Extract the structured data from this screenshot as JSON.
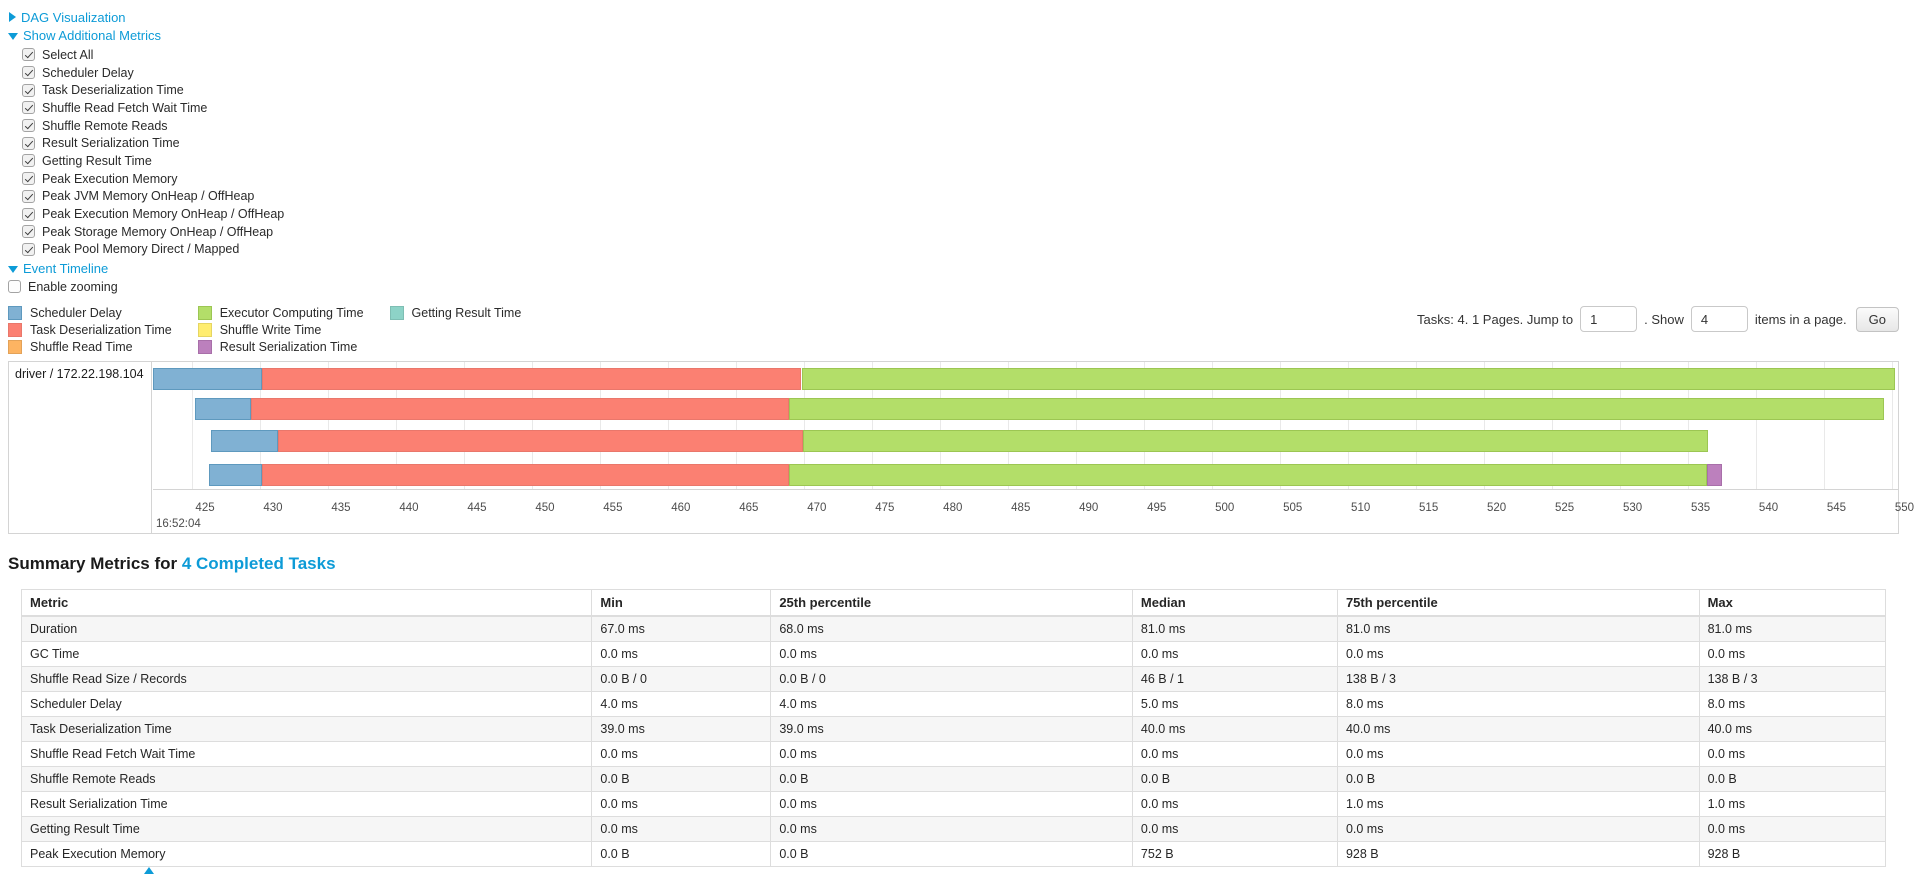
{
  "accent_color": "#0d9bd7",
  "sections": {
    "dag": {
      "label": "DAG Visualization",
      "state": "collapsed"
    },
    "metrics": {
      "label": "Show Additional Metrics",
      "state": "expanded",
      "checkboxes": [
        {
          "label": "Select All",
          "checked": true
        },
        {
          "label": "Scheduler Delay",
          "checked": true
        },
        {
          "label": "Task Deserialization Time",
          "checked": true
        },
        {
          "label": "Shuffle Read Fetch Wait Time",
          "checked": true
        },
        {
          "label": "Shuffle Remote Reads",
          "checked": true
        },
        {
          "label": "Result Serialization Time",
          "checked": true
        },
        {
          "label": "Getting Result Time",
          "checked": true
        },
        {
          "label": "Peak Execution Memory",
          "checked": true
        },
        {
          "label": "Peak JVM Memory OnHeap / OffHeap",
          "checked": true
        },
        {
          "label": "Peak Execution Memory OnHeap / OffHeap",
          "checked": true
        },
        {
          "label": "Peak Storage Memory OnHeap / OffHeap",
          "checked": true
        },
        {
          "label": "Peak Pool Memory Direct / Mapped",
          "checked": true
        }
      ]
    },
    "event_timeline": {
      "label": "Event Timeline",
      "enable_zooming_label": "Enable zooming",
      "enable_zooming_checked": false
    }
  },
  "legend": {
    "columns": [
      [
        {
          "label": "Scheduler Delay",
          "fill": "#80B1D3",
          "stroke": "#5E99BE"
        },
        {
          "label": "Task Deserialization Time",
          "fill": "#FB8072",
          "stroke": "#E9776B"
        },
        {
          "label": "Shuffle Read Time",
          "fill": "#FDB462",
          "stroke": "#E3A258"
        }
      ],
      [
        {
          "label": "Executor Computing Time",
          "fill": "#B3DE69",
          "stroke": "#9CC653"
        },
        {
          "label": "Shuffle Write Time",
          "fill": "#FFED6F",
          "stroke": "#E5D563"
        },
        {
          "label": "Result Serialization Time",
          "fill": "#BC80BD",
          "stroke": "#A86FA9"
        }
      ],
      [
        {
          "label": "Getting Result Time",
          "fill": "#8DD3C7",
          "stroke": "#7EBEB3"
        }
      ]
    ]
  },
  "pagination": {
    "prefix": "Tasks: 4. 1 Pages. Jump to",
    "jump_value": "1",
    "middle": ". Show",
    "show_value": "4",
    "suffix": "items in a page.",
    "go_label": "Go"
  },
  "chart_data": {
    "type": "timeline",
    "group_label": "driver / 172.22.198.104",
    "time_axis": {
      "start": 422.1,
      "end": 550.45,
      "tick_interval": 5,
      "ticks": [
        425,
        430,
        435,
        440,
        445,
        450,
        455,
        460,
        465,
        470,
        475,
        480,
        485,
        490,
        495,
        500,
        505,
        510,
        515,
        520,
        525,
        530,
        535,
        540,
        545,
        550
      ],
      "major_label": "16:52:04"
    },
    "colors": {
      "Scheduler Delay": {
        "fill": "#80B1D3",
        "stroke": "#5E99BE"
      },
      "Task Deserialization Time": {
        "fill": "#FB8072",
        "stroke": "#E9776B"
      },
      "Executor Computing Time": {
        "fill": "#B3DE69",
        "stroke": "#9CC653"
      },
      "Result Serialization Time": {
        "fill": "#BC80BD",
        "stroke": "#A86FA9"
      }
    },
    "tasks": [
      {
        "segments": [
          {
            "metric": "Scheduler Delay",
            "start": 422.1,
            "end": 430.1
          },
          {
            "metric": "Task Deserialization Time",
            "start": 430.1,
            "end": 469.8
          },
          {
            "metric": "Executor Computing Time",
            "start": 469.8,
            "end": 550.2
          }
        ]
      },
      {
        "segments": [
          {
            "metric": "Scheduler Delay",
            "start": 425.2,
            "end": 429.3
          },
          {
            "metric": "Task Deserialization Time",
            "start": 429.3,
            "end": 468.9
          },
          {
            "metric": "Executor Computing Time",
            "start": 468.9,
            "end": 549.4
          }
        ]
      },
      {
        "segments": [
          {
            "metric": "Scheduler Delay",
            "start": 426.4,
            "end": 431.3
          },
          {
            "metric": "Task Deserialization Time",
            "start": 431.3,
            "end": 469.9
          },
          {
            "metric": "Executor Computing Time",
            "start": 469.9,
            "end": 536.5
          }
        ]
      },
      {
        "segments": [
          {
            "metric": "Scheduler Delay",
            "start": 426.2,
            "end": 430.1
          },
          {
            "metric": "Task Deserialization Time",
            "start": 430.1,
            "end": 468.9
          },
          {
            "metric": "Executor Computing Time",
            "start": 468.9,
            "end": 536.4
          },
          {
            "metric": "Result Serialization Time",
            "start": 536.4,
            "end": 537.5
          }
        ]
      }
    ]
  },
  "summary": {
    "title_prefix": "Summary Metrics for ",
    "title_link": "4 Completed Tasks",
    "table": {
      "headers": [
        "Metric",
        "Min",
        "25th percentile",
        "Median",
        "75th percentile",
        "Max"
      ],
      "rows": [
        [
          "Duration",
          "67.0 ms",
          "68.0 ms",
          "81.0 ms",
          "81.0 ms",
          "81.0 ms"
        ],
        [
          "GC Time",
          "0.0 ms",
          "0.0 ms",
          "0.0 ms",
          "0.0 ms",
          "0.0 ms"
        ],
        [
          "Shuffle Read Size / Records",
          "0.0 B / 0",
          "0.0 B / 0",
          "46 B / 1",
          "138 B / 3",
          "138 B / 3"
        ],
        [
          "Scheduler Delay",
          "4.0 ms",
          "4.0 ms",
          "5.0 ms",
          "8.0 ms",
          "8.0 ms"
        ],
        [
          "Task Deserialization Time",
          "39.0 ms",
          "39.0 ms",
          "40.0 ms",
          "40.0 ms",
          "40.0 ms"
        ],
        [
          "Shuffle Read Fetch Wait Time",
          "0.0 ms",
          "0.0 ms",
          "0.0 ms",
          "0.0 ms",
          "0.0 ms"
        ],
        [
          "Shuffle Remote Reads",
          "0.0 B",
          "0.0 B",
          "0.0 B",
          "0.0 B",
          "0.0 B"
        ],
        [
          "Result Serialization Time",
          "0.0 ms",
          "0.0 ms",
          "0.0 ms",
          "1.0 ms",
          "1.0 ms"
        ],
        [
          "Getting Result Time",
          "0.0 ms",
          "0.0 ms",
          "0.0 ms",
          "0.0 ms",
          "0.0 ms"
        ],
        [
          "Peak Execution Memory",
          "0.0 B",
          "0.0 B",
          "752 B",
          "928 B",
          "928 B"
        ]
      ]
    }
  }
}
